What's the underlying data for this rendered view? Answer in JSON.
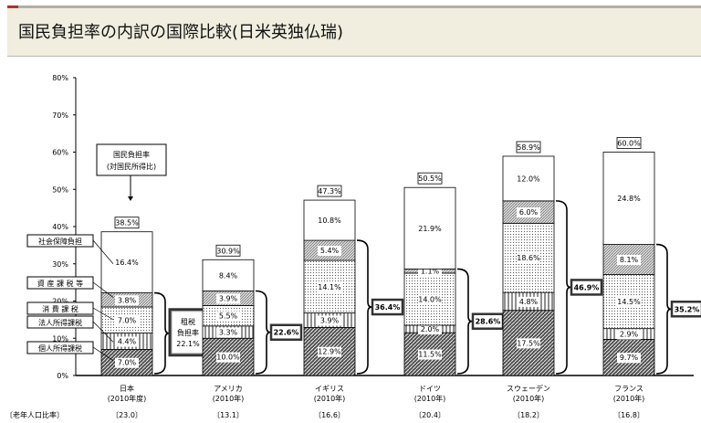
{
  "header": {
    "title": "国民負担率の内訳の国際比較(日米英独仏瑞)"
  },
  "chart_data": {
    "type": "bar",
    "stacked": true,
    "ylim": [
      0,
      80
    ],
    "yticks": [
      "0%",
      "10%",
      "20%",
      "30%",
      "40%",
      "50%",
      "60%",
      "70%",
      "80%"
    ],
    "categories": [
      [
        "日本",
        "(2010年度)"
      ],
      [
        "アメリカ",
        "(2010年)"
      ],
      [
        "イギリス",
        "(2010年)"
      ],
      [
        "ドイツ",
        "(2010年)"
      ],
      [
        "スウェーデン",
        "(2010年)"
      ],
      [
        "フランス",
        "(2010年)"
      ]
    ],
    "series": [
      {
        "name": "個人所得課税",
        "pattern": "diag-dark",
        "values": [
          7.0,
          10.0,
          12.9,
          11.5,
          17.5,
          9.7
        ]
      },
      {
        "name": "法人所得課税",
        "pattern": "vertical",
        "values": [
          4.4,
          3.3,
          3.9,
          2.0,
          4.8,
          2.9
        ]
      },
      {
        "name": "消 費 課 税",
        "pattern": "dots",
        "values": [
          7.0,
          5.5,
          14.1,
          14.0,
          18.6,
          14.5
        ]
      },
      {
        "name": "資 産 課 税 等",
        "pattern": "diag-light",
        "values": [
          3.8,
          3.9,
          5.4,
          1.1,
          6.0,
          8.1
        ]
      },
      {
        "name": "社会保障負担",
        "pattern": "blank",
        "values": [
          16.4,
          8.4,
          10.8,
          21.9,
          12.0,
          24.8
        ]
      }
    ],
    "totals": [
      "38.5%",
      "30.9%",
      "47.3%",
      "50.5%",
      "58.9%",
      "60.0%"
    ],
    "tax_burden": [
      "22.1%",
      "22.6%",
      "36.4%",
      "28.6%",
      "46.9%",
      "35.2%"
    ],
    "tax_burden_label": [
      "租税",
      "負担率"
    ],
    "total_label": [
      "国民負担率",
      "(対国民所得比)"
    ],
    "elderly_label": "〔老年人口比率〕",
    "elderly": [
      "〔23.0〕",
      "〔13.1〕",
      "〔16.6〕",
      "〔20.4〕",
      "〔18.2〕",
      "〔16.8〕"
    ]
  }
}
